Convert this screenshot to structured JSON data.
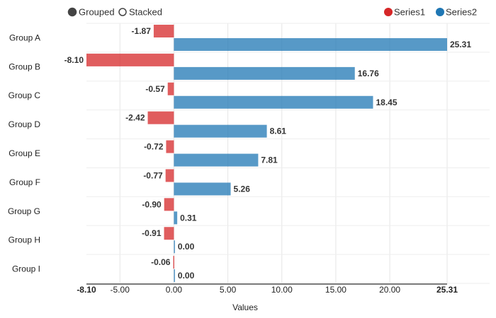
{
  "controls": {
    "grouped_label": "Grouped",
    "stacked_label": "Stacked",
    "selected": "grouped"
  },
  "chart_data": {
    "type": "bar",
    "orientation": "horizontal",
    "mode": "grouped",
    "categories": [
      "Group A",
      "Group B",
      "Group C",
      "Group D",
      "Group E",
      "Group F",
      "Group G",
      "Group H",
      "Group I"
    ],
    "series": [
      {
        "name": "Series1",
        "color": "#d62728",
        "values": [
          -1.87,
          -8.1,
          -0.57,
          -2.42,
          -0.72,
          -0.77,
          -0.9,
          -0.91,
          -0.06
        ]
      },
      {
        "name": "Series2",
        "color": "#1f77b4",
        "values": [
          25.31,
          16.76,
          18.45,
          8.61,
          7.81,
          5.26,
          0.31,
          0.0,
          0.0
        ]
      }
    ],
    "xlabel": "Values",
    "xlim": [
      -8.1,
      25.31
    ],
    "x_ticks": [
      -5,
      0,
      5,
      10,
      15,
      20
    ],
    "x_edge_labels": [
      "-8.10",
      "25.31"
    ],
    "grid": true,
    "legend_position": "top-right"
  }
}
